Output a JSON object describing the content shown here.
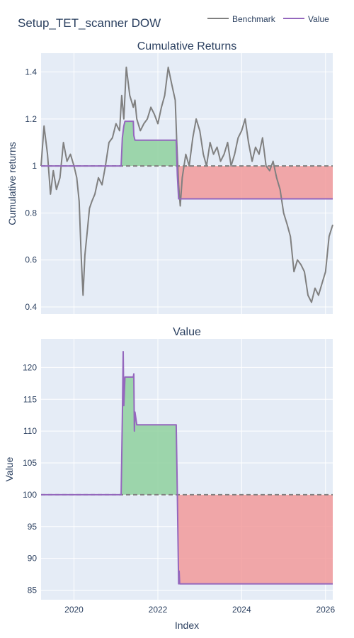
{
  "figure": {
    "title": "Setup_TET_scanner DOW",
    "xlabel": "Index",
    "background": "#ffffff",
    "plot_background": "#e5ecf6",
    "grid_color": "#ffffff"
  },
  "colors": {
    "benchmark": "#808080",
    "value": "#9467bd",
    "baseline": "#808080",
    "gain_fill": "#8fd19e",
    "loss_fill": "#f29a9a"
  },
  "legend": {
    "placement": "top-right",
    "items": [
      {
        "name": "Benchmark",
        "color": "#808080"
      },
      {
        "name": "Value",
        "color": "#9467bd"
      }
    ]
  },
  "chart_data": [
    {
      "type": "line",
      "title": "Cumulative Returns",
      "xlabel": "",
      "ylabel": "Cumulative returns",
      "xlim": [
        "2019-03-20",
        "2026-03-05"
      ],
      "ylim": [
        0.37,
        1.48
      ],
      "yticks": [
        0.4,
        0.6,
        0.8,
        1,
        1.2,
        1.4
      ],
      "ytick_labels": [
        "0.4",
        "0.6",
        "0.8",
        "1",
        "1.2",
        "1.4"
      ],
      "xticks": [
        "2020-01-01",
        "2022-01-01",
        "2024-01-01",
        "2026-01-01"
      ],
      "xtick_labels": [],
      "grid": true,
      "baseline": 1,
      "series": [
        {
          "name": "Benchmark",
          "color": "#808080",
          "x": [
            "2019-03-20",
            "2019-04-15",
            "2019-05-15",
            "2019-06-10",
            "2019-07-05",
            "2019-08-01",
            "2019-09-01",
            "2019-10-01",
            "2019-11-01",
            "2019-12-01",
            "2020-01-01",
            "2020-01-25",
            "2020-02-15",
            "2020-03-05",
            "2020-03-20",
            "2020-04-05",
            "2020-04-25",
            "2020-05-15",
            "2020-06-05",
            "2020-07-01",
            "2020-08-01",
            "2020-09-01",
            "2020-10-01",
            "2020-11-01",
            "2020-12-01",
            "2021-01-01",
            "2021-02-01",
            "2021-02-20",
            "2021-03-10",
            "2021-04-01",
            "2021-05-01",
            "2021-06-01",
            "2021-06-15",
            "2021-07-01",
            "2021-08-01",
            "2021-09-01",
            "2021-10-01",
            "2021-11-01",
            "2021-12-01",
            "2022-01-01",
            "2022-02-01",
            "2022-03-01",
            "2022-04-01",
            "2022-05-01",
            "2022-06-01",
            "2022-06-15",
            "2022-07-01",
            "2022-07-15",
            "2022-08-01",
            "2022-09-01",
            "2022-10-01",
            "2022-11-01",
            "2022-12-01",
            "2023-01-01",
            "2023-02-01",
            "2023-03-01",
            "2023-04-01",
            "2023-05-01",
            "2023-06-01",
            "2023-07-01",
            "2023-08-01",
            "2023-09-01",
            "2023-10-01",
            "2023-11-01",
            "2023-12-01",
            "2024-01-01",
            "2024-02-01",
            "2024-03-01",
            "2024-04-01",
            "2024-05-01",
            "2024-06-01",
            "2024-07-01",
            "2024-08-01",
            "2024-09-01",
            "2024-10-01",
            "2024-11-01",
            "2024-12-01",
            "2025-01-01",
            "2025-02-01",
            "2025-03-01",
            "2025-04-01",
            "2025-05-01",
            "2025-06-01",
            "2025-07-01",
            "2025-08-01",
            "2025-09-01",
            "2025-10-01",
            "2025-11-01",
            "2025-12-01",
            "2026-01-01",
            "2026-02-01",
            "2026-03-05"
          ],
          "y": [
            1.0,
            1.17,
            1.05,
            0.88,
            0.98,
            0.9,
            0.95,
            1.1,
            1.02,
            1.05,
            1.0,
            0.95,
            0.85,
            0.6,
            0.45,
            0.62,
            0.72,
            0.82,
            0.85,
            0.88,
            0.95,
            0.92,
            1.0,
            1.1,
            1.12,
            1.18,
            1.15,
            1.3,
            1.2,
            1.42,
            1.3,
            1.25,
            1.28,
            1.2,
            1.15,
            1.18,
            1.2,
            1.25,
            1.22,
            1.18,
            1.25,
            1.3,
            1.42,
            1.35,
            1.28,
            1.1,
            0.92,
            0.83,
            0.95,
            1.05,
            1.0,
            1.12,
            1.2,
            1.15,
            1.05,
            1.0,
            1.1,
            1.05,
            1.08,
            1.02,
            1.05,
            1.1,
            1.0,
            1.05,
            1.12,
            1.15,
            1.2,
            1.1,
            1.02,
            1.08,
            1.05,
            1.12,
            1.0,
            0.98,
            1.02,
            0.95,
            0.9,
            0.8,
            0.75,
            0.7,
            0.55,
            0.6,
            0.58,
            0.55,
            0.45,
            0.42,
            0.48,
            0.45,
            0.5,
            0.55,
            0.7,
            0.75
          ]
        },
        {
          "name": "Value",
          "color": "#9467bd",
          "x": [
            "2019-03-20",
            "2021-02-15",
            "2021-02-25",
            "2021-03-10",
            "2021-03-20",
            "2021-06-01",
            "2021-06-05",
            "2021-06-15",
            "2021-07-05",
            "2022-06-10",
            "2022-06-20",
            "2022-07-01",
            "2022-07-10",
            "2026-03-05"
          ],
          "y": [
            1.0,
            1.0,
            1.12,
            1.17,
            1.19,
            1.19,
            1.13,
            1.11,
            1.11,
            1.11,
            0.96,
            0.86,
            0.86,
            0.86
          ]
        }
      ]
    },
    {
      "type": "line",
      "title": "Value",
      "xlabel": "Index",
      "ylabel": "Value",
      "xlim": [
        "2019-03-20",
        "2026-03-05"
      ],
      "ylim": [
        83.5,
        124.5
      ],
      "yticks": [
        85,
        90,
        95,
        100,
        105,
        110,
        115,
        120
      ],
      "ytick_labels": [
        "85",
        "90",
        "95",
        "100",
        "105",
        "110",
        "115",
        "120"
      ],
      "xticks": [
        "2020-01-01",
        "2022-01-01",
        "2024-01-01",
        "2026-01-01"
      ],
      "xtick_labels": [
        "2020",
        "2022",
        "2024",
        "2026"
      ],
      "grid": true,
      "baseline": 100,
      "series": [
        {
          "name": "Value",
          "color": "#9467bd",
          "x": [
            "2019-03-20",
            "2021-02-15",
            "2021-02-25",
            "2021-03-05",
            "2021-03-10",
            "2021-03-20",
            "2021-03-22",
            "2021-06-01",
            "2021-06-05",
            "2021-06-10",
            "2021-06-15",
            "2021-07-01",
            "2022-06-10",
            "2022-06-20",
            "2022-07-01",
            "2022-07-05",
            "2022-07-10",
            "2026-03-05"
          ],
          "y": [
            100,
            100,
            112,
            122.5,
            114,
            118.5,
            118.5,
            118.5,
            119,
            110,
            113,
            111,
            111,
            100,
            86,
            88,
            86,
            86
          ]
        }
      ]
    }
  ]
}
